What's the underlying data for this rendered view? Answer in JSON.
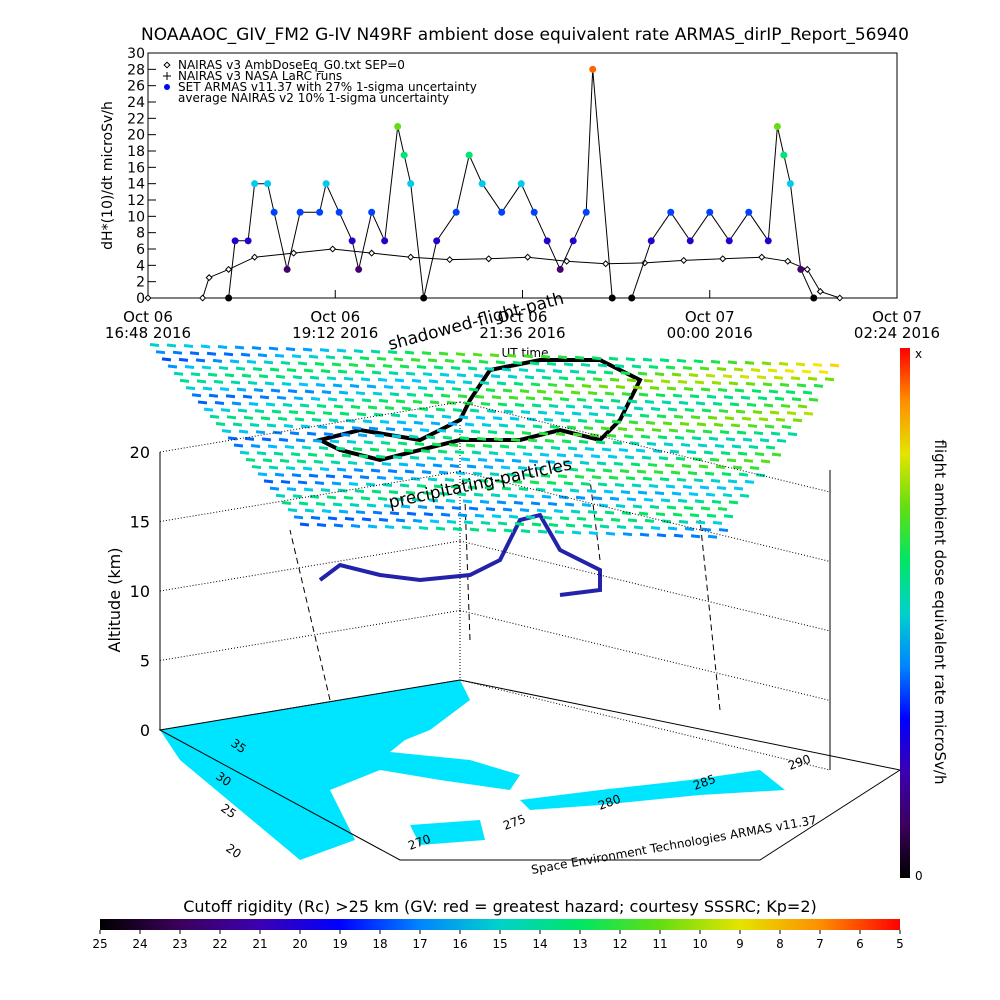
{
  "chart_data": [
    {
      "type": "timeseries",
      "title": "NOAAAOC_GIV_FM2 G-IV   N49RF  ambient dose equivalent rate ARMAS_dirIP_Report_56940",
      "x_label": "UT time",
      "y_label": "dH*(10)/dt microSv/h",
      "ylim": [
        0,
        30
      ],
      "yticks": [
        0,
        2,
        4,
        6,
        8,
        10,
        12,
        14,
        16,
        18,
        20,
        22,
        24,
        26,
        28,
        30
      ],
      "xlim": [
        "2016-10-06T16:48",
        "2016-10-07T02:24"
      ],
      "xticks": [
        {
          "value": "2016-10-06T16:48",
          "label": "Oct 06\n16:48 2016"
        },
        {
          "value": "2016-10-06T19:12",
          "label": "Oct 06\n19:12 2016"
        },
        {
          "value": "2016-10-06T21:36",
          "label": "Oct 06\n21:36 2016"
        },
        {
          "value": "2016-10-07T00:00",
          "label": "Oct 07\n00:00 2016"
        },
        {
          "value": "2016-10-07T02:24",
          "label": "Oct 07\n02:24 2016"
        }
      ],
      "legend": [
        "NAIRAS v3 AmbDoseEq_G0.txt SEP=0",
        "NAIRAS v3 NASA LaRC runs",
        "SET ARMAS v11.37 with 27% 1-sigma uncertainty",
        "average NAIRAS v2 10% 1-sigma uncertainty"
      ],
      "series": [
        {
          "name": "NAIRAS v3 AmbDoseEq_G0.txt SEP=0",
          "color": "#000000",
          "x": [
            "2016-10-06T16:48",
            "2016-10-06T17:30",
            "2016-10-06T17:35",
            "2016-10-06T17:50",
            "2016-10-06T18:10",
            "2016-10-06T18:40",
            "2016-10-06T19:10",
            "2016-10-06T19:40",
            "2016-10-06T20:10",
            "2016-10-06T20:40",
            "2016-10-06T21:10",
            "2016-10-06T21:40",
            "2016-10-06T22:10",
            "2016-10-06T22:40",
            "2016-10-06T23:10",
            "2016-10-06T23:40",
            "2016-10-07T00:10",
            "2016-10-07T00:40",
            "2016-10-07T01:00",
            "2016-10-07T01:15",
            "2016-10-07T01:25",
            "2016-10-07T01:40"
          ],
          "values": [
            0,
            0,
            2.5,
            3.5,
            5,
            5.5,
            6,
            5.5,
            5,
            4.7,
            4.8,
            5,
            4.5,
            4.2,
            4.3,
            4.6,
            4.8,
            5,
            4.5,
            3.5,
            0.8,
            0
          ]
        },
        {
          "name": "SET ARMAS v11.37 with 27% 1-sigma uncertainty",
          "color": "#0000ff",
          "x": [
            "2016-10-06T17:50",
            "2016-10-06T17:55",
            "2016-10-06T18:05",
            "2016-10-06T18:10",
            "2016-10-06T18:20",
            "2016-10-06T18:25",
            "2016-10-06T18:35",
            "2016-10-06T18:45",
            "2016-10-06T19:00",
            "2016-10-06T19:05",
            "2016-10-06T19:15",
            "2016-10-06T19:25",
            "2016-10-06T19:30",
            "2016-10-06T19:40",
            "2016-10-06T19:50",
            "2016-10-06T20:00",
            "2016-10-06T20:05",
            "2016-10-06T20:10",
            "2016-10-06T20:20",
            "2016-10-06T20:30",
            "2016-10-06T20:45",
            "2016-10-06T20:55",
            "2016-10-06T21:05",
            "2016-10-06T21:20",
            "2016-10-06T21:35",
            "2016-10-06T21:45",
            "2016-10-06T21:55",
            "2016-10-06T22:05",
            "2016-10-06T22:15",
            "2016-10-06T22:25",
            "2016-10-06T22:30",
            "2016-10-06T22:45",
            "2016-10-06T23:00",
            "2016-10-06T23:15",
            "2016-10-06T23:30",
            "2016-10-06T23:45",
            "2016-10-07T00:00",
            "2016-10-07T00:15",
            "2016-10-07T00:30",
            "2016-10-07T00:45",
            "2016-10-07T00:52",
            "2016-10-07T00:57",
            "2016-10-07T01:02",
            "2016-10-07T01:10",
            "2016-10-07T01:20"
          ],
          "values": [
            0,
            7,
            7,
            14,
            14,
            10.5,
            3.5,
            10.5,
            10.5,
            14,
            10.5,
            7,
            3.5,
            10.5,
            7,
            21,
            17.5,
            14,
            0,
            7,
            10.5,
            17.5,
            14,
            10.5,
            14,
            10.5,
            7,
            3.5,
            7,
            10.5,
            28,
            0,
            0,
            7,
            10.5,
            7,
            10.5,
            7,
            10.5,
            7,
            21,
            17.5,
            14,
            3.5,
            0
          ]
        }
      ]
    },
    {
      "type": "colorbar",
      "title": "Cutoff rigidity (Rc) >25 km (GV: red = greatest hazard; courtesy SSSRC; Kp=2)",
      "ticks": [
        25,
        24,
        23,
        22,
        21,
        20,
        19,
        18,
        17,
        16,
        15,
        14,
        13,
        12,
        11,
        10,
        9,
        8,
        7,
        6,
        5
      ]
    },
    {
      "type": "colorbar-vertical",
      "title": "flight ambient dose equivalent rate microSv/h",
      "ticks": [
        "0",
        "x"
      ]
    },
    {
      "type": "surface3d",
      "z_label": "Altitude (km)",
      "zlim": [
        0,
        20
      ],
      "zticks": [
        0,
        5,
        10,
        15,
        20
      ],
      "lat_ticks": [
        20,
        25,
        30,
        35
      ],
      "lon_ticks": [
        270,
        275,
        280,
        285,
        290
      ],
      "annotations": [
        "shadowed-flight-path",
        "precipitating-particles"
      ],
      "credit": "Space Environment Technologies ARMAS v11.37"
    }
  ]
}
